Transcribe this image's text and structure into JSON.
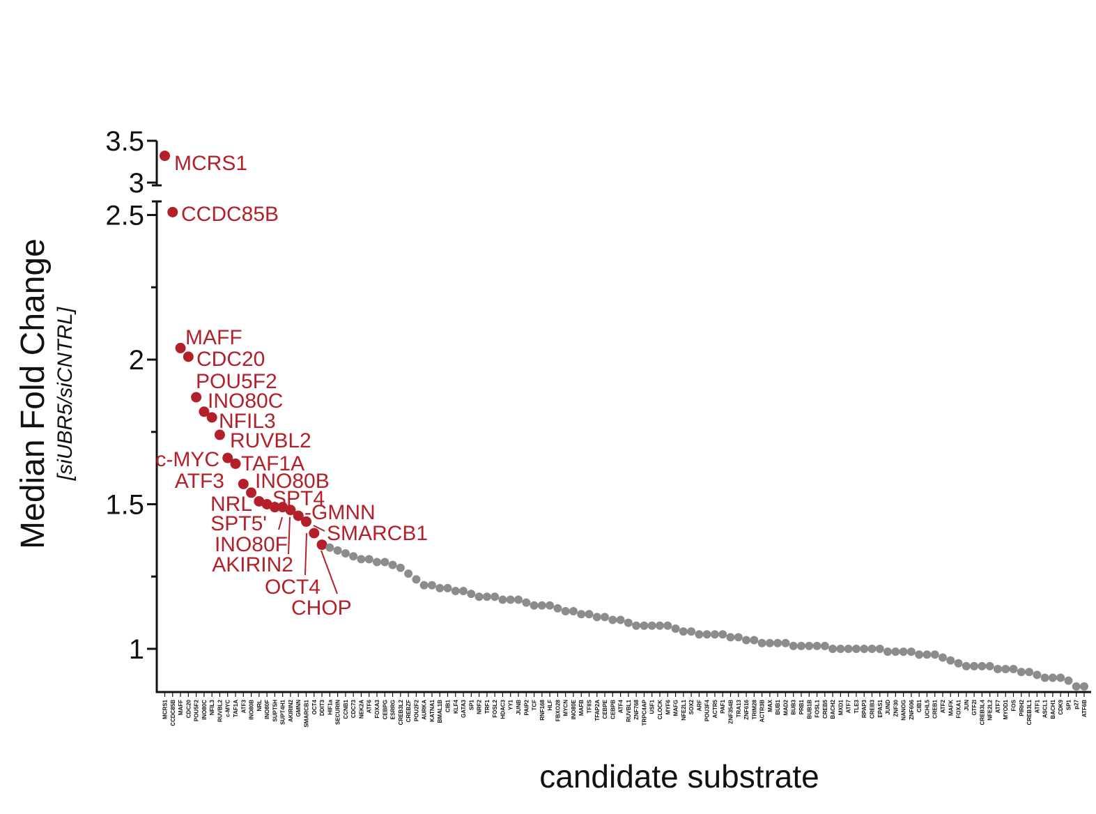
{
  "chart_data": {
    "type": "scatter",
    "title": "",
    "xlabel": "candidate substrate",
    "ylabel": "Median Fold Change",
    "ylabel_sub": "[siUBR5/siCNTRL]",
    "y_axis": {
      "lower_segment": {
        "ylim": [
          0.85,
          2.56
        ],
        "ticks": [
          1,
          1.5,
          2,
          2.5
        ],
        "tick_labels": [
          "1",
          "1.5",
          "2",
          "2.5"
        ],
        "minor_ticks": [
          1.25,
          1.75,
          2.25
        ]
      },
      "upper_segment": {
        "ylim": [
          3,
          3.5
        ],
        "ticks": [
          3,
          3.5
        ],
        "tick_labels": [
          "3",
          "3.5"
        ]
      }
    },
    "colors": {
      "highlight": "#b3202a",
      "other": "#8c8c8c",
      "axis": "#111111"
    },
    "categories": [
      "MCRS1",
      "CCDC85B",
      "MAFF",
      "CDC20",
      "POU5F2",
      "INO80C",
      "NFIL3",
      "RUVBL2",
      "c-MYC",
      "TAF1A",
      "ATF3",
      "INO80B",
      "NRL",
      "INO80F",
      "SUPT5H",
      "SUPT4H1",
      "AKIRIN2",
      "GMNN",
      "SMARCB1",
      "OCT4",
      "DDIT3",
      "HIF1a",
      "SECURIN",
      "CCNB1",
      "CDC73",
      "NEK2A",
      "ATF6",
      "FOXA3",
      "CEBPG",
      "ESRRG",
      "CREB3L2",
      "CREBZF",
      "POU2F2",
      "AURKA",
      "KATNA1",
      "BMAL1B",
      "CIB1",
      "KLF4",
      "GATA3",
      "SP1",
      "NRF2",
      "TRF1",
      "FOSL2",
      "HDAC3",
      "YY1",
      "JUNB",
      "PAIP2",
      "TCF",
      "RNF168",
      "HLF",
      "FBXO28",
      "MYCN",
      "INO80E",
      "MAFB",
      "TFIIS",
      "TFAP2A",
      "CEBPE",
      "CEBPB",
      "ATF4",
      "RUVBL1",
      "ZNF768",
      "TRPC4AP",
      "USF1",
      "CLOCK",
      "MYF6",
      "MAFG",
      "NFE2L1",
      "SOX2",
      "ARF",
      "POU3F4",
      "ACTR5",
      "PAF1",
      "ZNF354B",
      "TRA13",
      "ZNF616",
      "TRIM28",
      "ACTR3B",
      "MAX",
      "BUB1",
      "MAD2",
      "BUB3",
      "PRB1",
      "BUB1B",
      "FOSL1",
      "CREB5",
      "BACH2",
      "MXD1",
      "ATF7",
      "TLE3",
      "RPAP3",
      "CREB3",
      "EPAS1",
      "JUND",
      "ZNF30",
      "NANOG",
      "ZNF606",
      "CIB1",
      "UCHL5",
      "CREB1",
      "ATF2",
      "MAFK",
      "FOXA1",
      "JUN",
      "GTF2I",
      "CREB3L4",
      "NFE2L2",
      "ATF7",
      "MYOD1",
      "FOS",
      "PIRH2",
      "CREB3L1",
      "ATF1",
      "ASCL1",
      "BACH1",
      "CDK9",
      "SP1",
      "p27",
      "ATF6B"
    ],
    "values": [
      3.32,
      2.51,
      2.04,
      2.01,
      1.87,
      1.82,
      1.8,
      1.74,
      1.66,
      1.64,
      1.57,
      1.54,
      1.51,
      1.5,
      1.49,
      1.49,
      1.48,
      1.46,
      1.44,
      1.4,
      1.36,
      1.35,
      1.34,
      1.33,
      1.32,
      1.31,
      1.31,
      1.3,
      1.3,
      1.29,
      1.28,
      1.26,
      1.24,
      1.22,
      1.22,
      1.21,
      1.21,
      1.2,
      1.2,
      1.19,
      1.18,
      1.18,
      1.18,
      1.17,
      1.17,
      1.17,
      1.16,
      1.15,
      1.15,
      1.15,
      1.14,
      1.13,
      1.13,
      1.12,
      1.12,
      1.11,
      1.11,
      1.1,
      1.1,
      1.09,
      1.08,
      1.08,
      1.08,
      1.08,
      1.08,
      1.07,
      1.06,
      1.06,
      1.05,
      1.05,
      1.05,
      1.05,
      1.04,
      1.04,
      1.03,
      1.03,
      1.02,
      1.02,
      1.02,
      1.02,
      1.01,
      1.01,
      1.01,
      1.01,
      1.01,
      1.0,
      1.0,
      1.0,
      1.0,
      1.0,
      1.0,
      1.0,
      0.99,
      0.99,
      0.99,
      0.99,
      0.98,
      0.98,
      0.98,
      0.97,
      0.96,
      0.95,
      0.94,
      0.94,
      0.94,
      0.94,
      0.93,
      0.93,
      0.93,
      0.92,
      0.92,
      0.91,
      0.9,
      0.9,
      0.9,
      0.89,
      0.87,
      0.87
    ],
    "highlight_count": 21,
    "annotations": [
      {
        "label": "MCRS1",
        "point": 0
      },
      {
        "label": "CCDC85B",
        "point": 1
      },
      {
        "label": "MAFF",
        "point": 2
      },
      {
        "label": "CDC20",
        "point": 3
      },
      {
        "label": "POU5F2",
        "point": 4
      },
      {
        "label": "INO80C",
        "point": 5
      },
      {
        "label": "NFIL3",
        "point": 6
      },
      {
        "label": "RUVBL2",
        "point": 7
      },
      {
        "label": "c-MYC",
        "point": 8
      },
      {
        "label": "TAF1A",
        "point": 9
      },
      {
        "label": "ATF3",
        "point": 10
      },
      {
        "label": "INO80B",
        "point": 11
      },
      {
        "label": "NRL",
        "point": 12
      },
      {
        "label": "SPT4",
        "point": 15
      },
      {
        "label": "-GMNN",
        "point": 17
      },
      {
        "label": "SPT5'",
        "point": 14
      },
      {
        "label": "SMARCB1",
        "point": 18
      },
      {
        "label": "INO80F",
        "point": 13
      },
      {
        "label": "AKIRIN2",
        "point": 16
      },
      {
        "label": "OCT4",
        "point": 19
      },
      {
        "label": "CHOP",
        "point": 20
      }
    ]
  }
}
